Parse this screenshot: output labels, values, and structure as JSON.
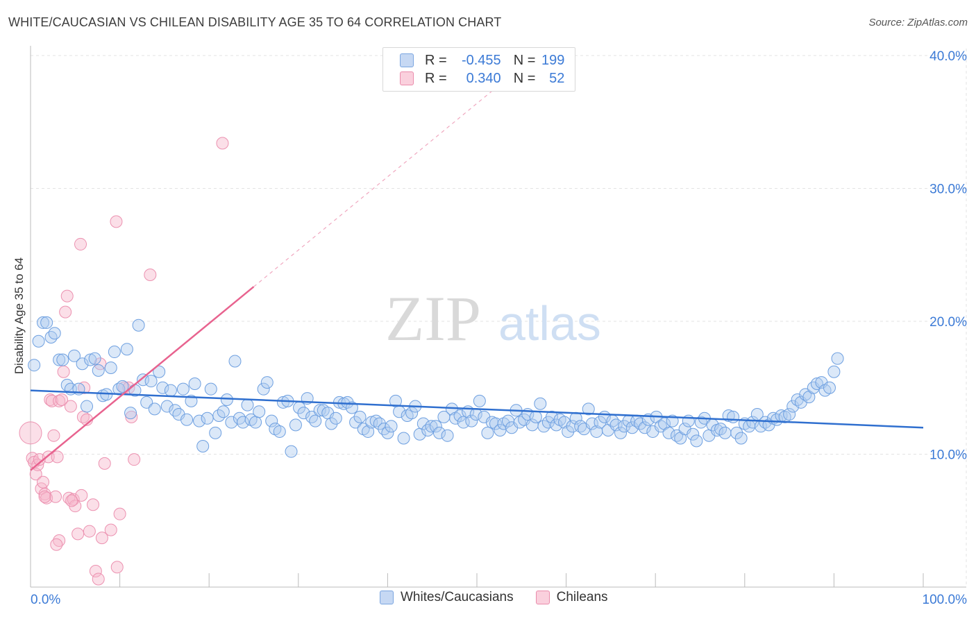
{
  "header": {
    "title": "WHITE/CAUCASIAN VS CHILEAN DISABILITY AGE 35 TO 64 CORRELATION CHART",
    "source": "Source: ZipAtlas.com"
  },
  "watermark": {
    "zip": "ZIP",
    "atlas": "atlas"
  },
  "legend": {
    "rows": [
      {
        "r_label": "R =",
        "r_value": "-0.455",
        "n_label": "N =",
        "n_value": "199"
      },
      {
        "r_label": "R =",
        "r_value": "0.340",
        "n_label": "N =",
        "n_value": "52"
      }
    ]
  },
  "bottom_legend": {
    "white": "Whites/Caucasians",
    "chilean": "Chileans"
  },
  "colors": {
    "blue": "#3b7ad6",
    "pink": "#e8638f",
    "blue_fill": "#c6d8f3",
    "pink_fill": "#fad0dd"
  },
  "chart_data": {
    "type": "scatter",
    "title": "WHITE/CAUCASIAN VS CHILEAN DISABILITY AGE 35 TO 64 CORRELATION CHART",
    "xlabel": "",
    "ylabel": "Disability Age 35 to 64",
    "xlim": [
      0,
      100
    ],
    "ylim": [
      0,
      40
    ],
    "x_tick_labels": [
      "0.0%",
      "100.0%"
    ],
    "y_tick_labels": [
      "10.0%",
      "20.0%",
      "30.0%",
      "40.0%"
    ],
    "y_ticks": [
      10,
      20,
      30,
      40
    ],
    "grid": true,
    "legend_placement": "top-center",
    "series": [
      {
        "name": "Whites/Caucasians",
        "color": "#3b7ad6",
        "r": -0.455,
        "n": 199,
        "trend": {
          "x": [
            0,
            100
          ],
          "y": [
            14.8,
            12.0
          ]
        },
        "points": [
          [
            0.4,
            16.7
          ],
          [
            0.9,
            18.5
          ],
          [
            1.4,
            19.9
          ],
          [
            1.8,
            19.9
          ],
          [
            2.3,
            18.8
          ],
          [
            2.7,
            19.1
          ],
          [
            3.2,
            17.1
          ],
          [
            3.6,
            17.1
          ],
          [
            4.1,
            15.2
          ],
          [
            4.5,
            14.9
          ],
          [
            4.9,
            17.4
          ],
          [
            5.4,
            14.9
          ],
          [
            5.8,
            16.8
          ],
          [
            6.3,
            13.6
          ],
          [
            6.7,
            17.1
          ],
          [
            7.2,
            17.2
          ],
          [
            7.6,
            16.3
          ],
          [
            8.1,
            14.4
          ],
          [
            8.5,
            14.5
          ],
          [
            9.0,
            16.5
          ],
          [
            9.4,
            17.7
          ],
          [
            9.9,
            14.9
          ],
          [
            10.3,
            15.1
          ],
          [
            10.8,
            17.9
          ],
          [
            11.2,
            13.1
          ],
          [
            11.7,
            14.8
          ],
          [
            12.1,
            19.7
          ],
          [
            12.6,
            15.6
          ],
          [
            13.0,
            13.9
          ],
          [
            13.5,
            15.5
          ],
          [
            13.9,
            13.4
          ],
          [
            14.4,
            16.2
          ],
          [
            14.8,
            15.0
          ],
          [
            15.3,
            13.6
          ],
          [
            15.7,
            14.8
          ],
          [
            16.2,
            13.3
          ],
          [
            16.6,
            13.0
          ],
          [
            17.1,
            14.9
          ],
          [
            17.5,
            12.6
          ],
          [
            18.0,
            14.0
          ],
          [
            18.4,
            15.3
          ],
          [
            18.9,
            12.5
          ],
          [
            19.3,
            10.6
          ],
          [
            19.8,
            12.7
          ],
          [
            20.2,
            14.9
          ],
          [
            20.7,
            11.6
          ],
          [
            21.1,
            12.9
          ],
          [
            21.6,
            13.2
          ],
          [
            22.0,
            14.1
          ],
          [
            22.5,
            12.4
          ],
          [
            22.9,
            17.0
          ],
          [
            23.4,
            12.7
          ],
          [
            23.8,
            12.4
          ],
          [
            24.3,
            13.7
          ],
          [
            24.7,
            12.6
          ],
          [
            25.2,
            12.4
          ],
          [
            25.6,
            13.2
          ],
          [
            26.1,
            14.9
          ],
          [
            26.5,
            15.4
          ],
          [
            27.0,
            12.5
          ],
          [
            27.4,
            11.9
          ],
          [
            27.9,
            11.7
          ],
          [
            28.3,
            13.9
          ],
          [
            28.8,
            14.0
          ],
          [
            29.2,
            10.2
          ],
          [
            29.7,
            12.2
          ],
          [
            30.1,
            13.5
          ],
          [
            30.6,
            13.1
          ],
          [
            31.0,
            14.2
          ],
          [
            31.5,
            12.8
          ],
          [
            31.9,
            12.5
          ],
          [
            32.4,
            13.3
          ],
          [
            32.8,
            13.3
          ],
          [
            33.3,
            13.1
          ],
          [
            33.7,
            12.3
          ],
          [
            34.2,
            12.7
          ],
          [
            34.6,
            13.9
          ],
          [
            35.1,
            13.8
          ],
          [
            35.5,
            13.9
          ],
          [
            36.0,
            13.5
          ],
          [
            36.4,
            12.4
          ],
          [
            36.9,
            12.8
          ],
          [
            37.3,
            11.9
          ],
          [
            37.8,
            11.7
          ],
          [
            38.2,
            12.4
          ],
          [
            38.7,
            12.5
          ],
          [
            39.1,
            12.3
          ],
          [
            39.6,
            11.9
          ],
          [
            40.0,
            11.6
          ],
          [
            40.4,
            12.1
          ],
          [
            40.9,
            14.0
          ],
          [
            41.3,
            13.2
          ],
          [
            41.8,
            11.2
          ],
          [
            42.2,
            12.9
          ],
          [
            42.7,
            13.1
          ],
          [
            43.1,
            13.6
          ],
          [
            43.6,
            11.5
          ],
          [
            44.0,
            12.3
          ],
          [
            44.5,
            11.8
          ],
          [
            44.9,
            12.1
          ],
          [
            45.4,
            12.1
          ],
          [
            45.8,
            11.6
          ],
          [
            46.3,
            12.8
          ],
          [
            46.7,
            11.4
          ],
          [
            47.2,
            13.4
          ],
          [
            47.6,
            12.7
          ],
          [
            48.1,
            12.9
          ],
          [
            48.5,
            12.4
          ],
          [
            49.0,
            13.2
          ],
          [
            49.4,
            12.5
          ],
          [
            49.9,
            13.0
          ],
          [
            50.3,
            14.0
          ],
          [
            50.8,
            12.8
          ],
          [
            51.2,
            11.6
          ],
          [
            51.7,
            12.4
          ],
          [
            52.1,
            12.3
          ],
          [
            52.6,
            11.8
          ],
          [
            53.0,
            12.3
          ],
          [
            53.5,
            12.5
          ],
          [
            53.9,
            12.0
          ],
          [
            54.4,
            13.3
          ],
          [
            54.8,
            12.4
          ],
          [
            55.3,
            12.6
          ],
          [
            55.7,
            13.0
          ],
          [
            56.2,
            12.2
          ],
          [
            56.6,
            12.8
          ],
          [
            57.1,
            13.8
          ],
          [
            57.5,
            12.1
          ],
          [
            58.0,
            12.4
          ],
          [
            58.4,
            12.8
          ],
          [
            58.9,
            12.2
          ],
          [
            59.3,
            12.6
          ],
          [
            59.8,
            12.4
          ],
          [
            60.2,
            11.7
          ],
          [
            60.7,
            12.1
          ],
          [
            61.1,
            12.7
          ],
          [
            61.6,
            12.1
          ],
          [
            62.0,
            11.9
          ],
          [
            62.5,
            13.4
          ],
          [
            62.9,
            12.3
          ],
          [
            63.4,
            11.7
          ],
          [
            63.8,
            12.4
          ],
          [
            64.3,
            12.8
          ],
          [
            64.7,
            11.8
          ],
          [
            65.2,
            12.5
          ],
          [
            65.6,
            12.2
          ],
          [
            66.1,
            11.6
          ],
          [
            66.5,
            12.1
          ],
          [
            67.0,
            12.5
          ],
          [
            67.4,
            12.0
          ],
          [
            67.9,
            12.5
          ],
          [
            68.3,
            12.3
          ],
          [
            68.8,
            12.0
          ],
          [
            69.2,
            12.6
          ],
          [
            69.7,
            11.7
          ],
          [
            70.1,
            12.8
          ],
          [
            70.6,
            12.1
          ],
          [
            71.0,
            12.3
          ],
          [
            71.5,
            11.6
          ],
          [
            71.9,
            12.5
          ],
          [
            72.4,
            11.4
          ],
          [
            72.8,
            11.2
          ],
          [
            73.3,
            11.9
          ],
          [
            73.7,
            12.5
          ],
          [
            74.2,
            11.5
          ],
          [
            74.6,
            11.0
          ],
          [
            75.1,
            12.4
          ],
          [
            75.5,
            12.7
          ],
          [
            76.0,
            11.4
          ],
          [
            76.4,
            12.2
          ],
          [
            76.9,
            11.8
          ],
          [
            77.3,
            11.9
          ],
          [
            77.8,
            11.6
          ],
          [
            78.2,
            12.9
          ],
          [
            78.7,
            12.8
          ],
          [
            79.1,
            11.6
          ],
          [
            79.6,
            11.2
          ],
          [
            80.0,
            12.3
          ],
          [
            80.5,
            12.1
          ],
          [
            80.9,
            12.4
          ],
          [
            81.4,
            13.0
          ],
          [
            81.8,
            12.1
          ],
          [
            82.3,
            12.4
          ],
          [
            82.7,
            12.2
          ],
          [
            83.2,
            12.7
          ],
          [
            83.6,
            12.6
          ],
          [
            84.1,
            12.9
          ],
          [
            84.5,
            12.8
          ],
          [
            85.0,
            13.0
          ],
          [
            85.4,
            13.6
          ],
          [
            85.9,
            14.1
          ],
          [
            86.3,
            13.9
          ],
          [
            86.8,
            14.5
          ],
          [
            87.2,
            14.3
          ],
          [
            87.7,
            15.0
          ],
          [
            88.1,
            15.3
          ],
          [
            88.6,
            15.4
          ],
          [
            89.0,
            14.8
          ],
          [
            89.5,
            15.0
          ],
          [
            90.0,
            16.2
          ],
          [
            90.4,
            17.2
          ]
        ]
      },
      {
        "name": "Chileans",
        "color": "#e8638f",
        "r": 0.34,
        "n": 52,
        "trend": {
          "x": [
            0,
            25
          ],
          "y": [
            8.8,
            22.6
          ]
        },
        "trend_extension": {
          "x": [
            25,
            54
          ],
          "y": [
            22.6,
            38.6
          ]
        },
        "points": [
          [
            0.0,
            11.6
          ],
          [
            0.2,
            9.7
          ],
          [
            0.4,
            9.4
          ],
          [
            0.6,
            8.5
          ],
          [
            0.8,
            9.2
          ],
          [
            1.0,
            9.6
          ],
          [
            1.2,
            7.4
          ],
          [
            1.4,
            7.9
          ],
          [
            1.6,
            7.0
          ],
          [
            1.8,
            6.7
          ],
          [
            2.0,
            9.8
          ],
          [
            2.2,
            14.1
          ],
          [
            2.4,
            14.0
          ],
          [
            2.6,
            11.4
          ],
          [
            2.8,
            6.8
          ],
          [
            3.0,
            9.8
          ],
          [
            3.2,
            14.0
          ],
          [
            3.5,
            14.1
          ],
          [
            3.7,
            16.2
          ],
          [
            3.9,
            20.7
          ],
          [
            4.1,
            21.9
          ],
          [
            4.3,
            6.7
          ],
          [
            4.5,
            13.6
          ],
          [
            4.8,
            6.6
          ],
          [
            5.0,
            6.1
          ],
          [
            5.3,
            4.0
          ],
          [
            5.6,
            25.8
          ],
          [
            5.9,
            12.8
          ],
          [
            6.0,
            15.0
          ],
          [
            6.3,
            12.6
          ],
          [
            6.6,
            4.2
          ],
          [
            7.0,
            6.2
          ],
          [
            7.3,
            1.2
          ],
          [
            7.6,
            0.6
          ],
          [
            7.8,
            16.8
          ],
          [
            8.0,
            3.7
          ],
          [
            8.3,
            9.3
          ],
          [
            9.0,
            4.3
          ],
          [
            9.6,
            27.5
          ],
          [
            9.7,
            1.5
          ],
          [
            10.0,
            5.5
          ],
          [
            10.5,
            15.0
          ],
          [
            11.0,
            15.0
          ],
          [
            11.3,
            12.8
          ],
          [
            11.6,
            9.6
          ],
          [
            13.4,
            23.5
          ],
          [
            1.6,
            6.8
          ],
          [
            5.7,
            6.9
          ],
          [
            3.2,
            3.5
          ],
          [
            21.5,
            33.4
          ],
          [
            2.9,
            3.2
          ],
          [
            4.6,
            6.5
          ]
        ]
      }
    ]
  }
}
